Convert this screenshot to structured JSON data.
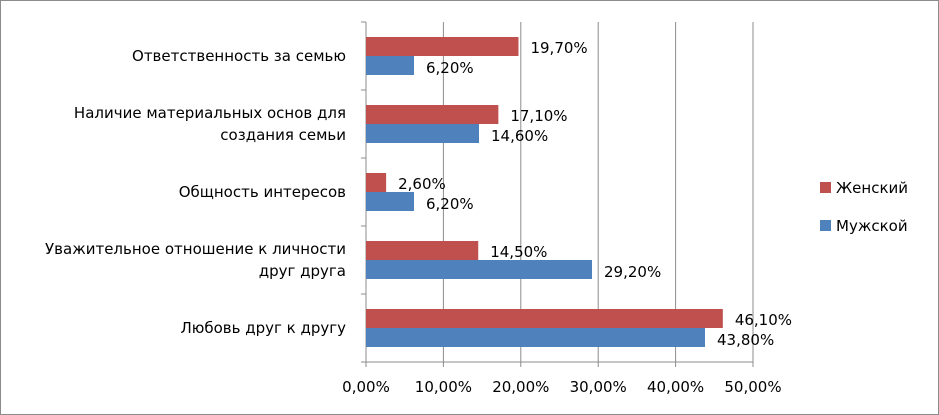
{
  "chart_data": {
    "type": "bar",
    "orientation": "horizontal",
    "categories": [
      [
        "Ответственность за семью"
      ],
      [
        "Наличие материальных основ для",
        "создания семьи"
      ],
      [
        "Общность интересов"
      ],
      [
        "Уважительное отношение к личности",
        "друг друга"
      ],
      [
        "Любовь друг к другу"
      ]
    ],
    "series": [
      {
        "name": "Женский",
        "color": "#c0504d",
        "values": [
          19.7,
          17.1,
          2.6,
          14.5,
          46.1
        ],
        "labels": [
          "19,70%",
          "17,10%",
          "2,60%",
          "14,50%",
          "46,10%"
        ]
      },
      {
        "name": "Мужской",
        "color": "#4f81bd",
        "values": [
          6.2,
          14.6,
          6.2,
          29.2,
          43.8
        ],
        "labels": [
          "6,20%",
          "14,60%",
          "6,20%",
          "29,20%",
          "43,80%"
        ]
      }
    ],
    "xlim": [
      0,
      50
    ],
    "xticks": [
      0,
      10,
      20,
      30,
      40,
      50
    ],
    "xtick_labels": [
      "0,00%",
      "10,00%",
      "20,00%",
      "30,00%",
      "40,00%",
      "50,00%"
    ],
    "gridlines": "vertical",
    "legend_position": "right",
    "title": "",
    "xlabel": "",
    "ylabel": ""
  }
}
